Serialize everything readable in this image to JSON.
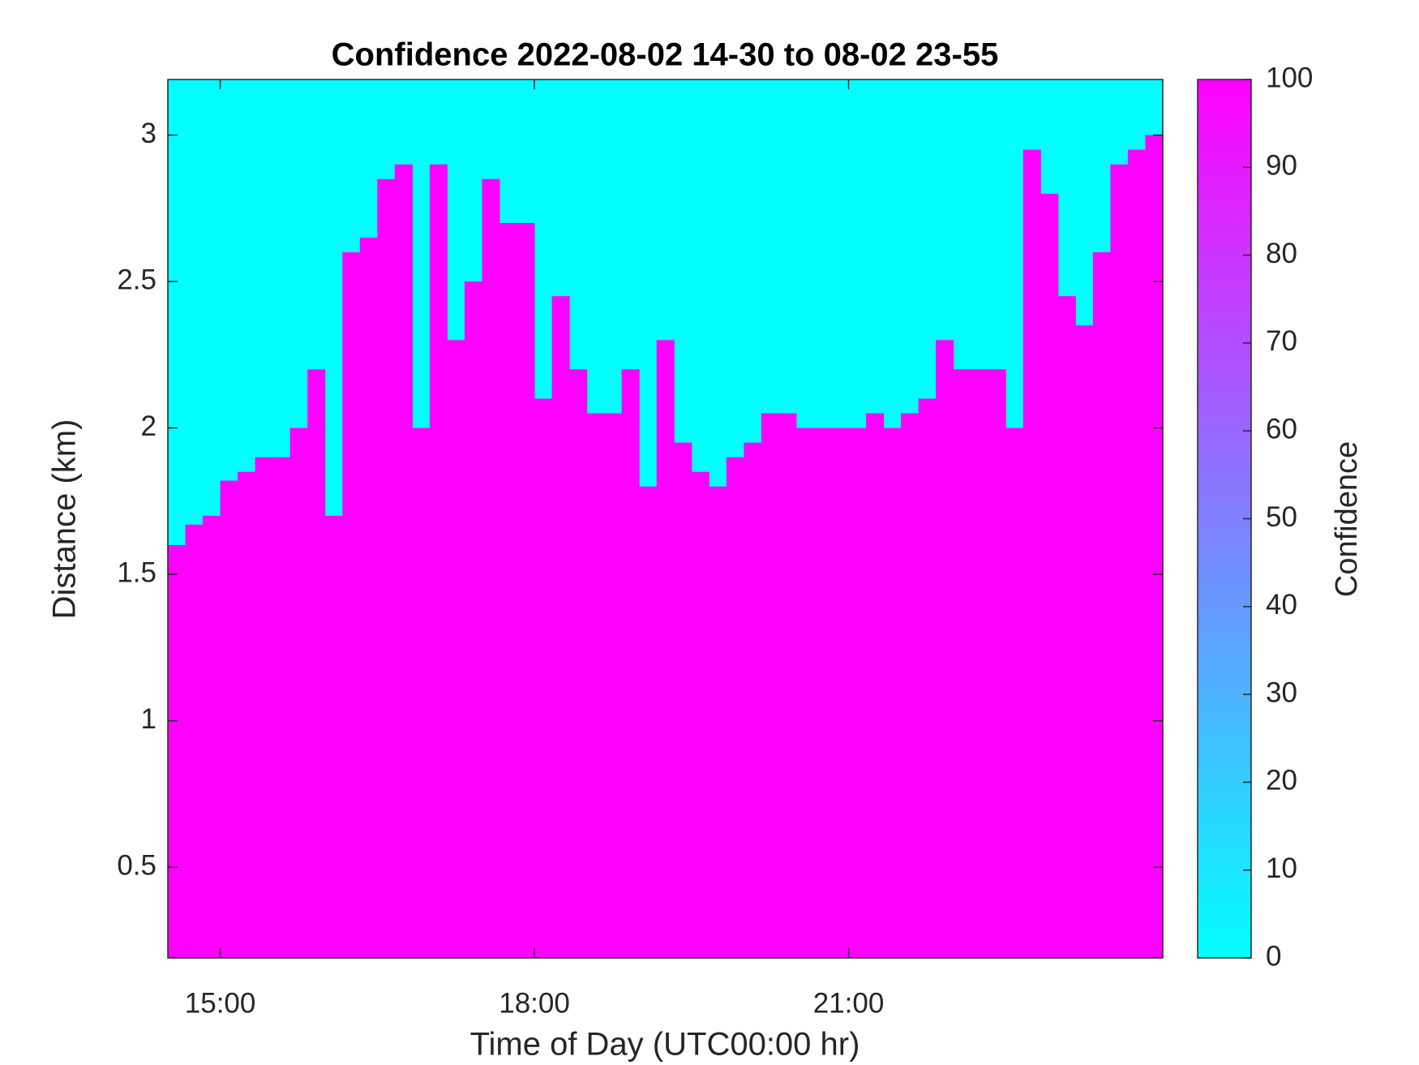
{
  "chart_data": {
    "type": "heatmap",
    "title": "Confidence 2022-08-02 14-30 to 08-02 23-55",
    "x_label": "Time of Day (UTC00:00 hr)",
    "y_label": "Distance (km)",
    "x": [
      870,
      880,
      890,
      900,
      910,
      920,
      930,
      940,
      950,
      960,
      970,
      980,
      990,
      1000,
      1010,
      1020,
      1030,
      1040,
      1050,
      1060,
      1070,
      1080,
      1090,
      1100,
      1110,
      1120,
      1130,
      1140,
      1150,
      1160,
      1170,
      1180,
      1190,
      1200,
      1210,
      1220,
      1230,
      1240,
      1250,
      1260,
      1270,
      1280,
      1290,
      1300,
      1310,
      1320,
      1330,
      1340,
      1350,
      1360,
      1370,
      1380,
      1390,
      1400,
      1410,
      1420,
      1430
    ],
    "series": [
      {
        "name": "Confidence",
        "color": "#ff00ff",
        "values": [
          1.6,
          1.67,
          1.7,
          1.82,
          1.85,
          1.9,
          1.9,
          2.0,
          2.2,
          1.7,
          2.6,
          2.65,
          2.85,
          2.9,
          2.0,
          2.9,
          2.3,
          2.5,
          2.85,
          2.7,
          2.7,
          2.1,
          2.45,
          2.2,
          2.05,
          2.05,
          2.2,
          1.8,
          2.3,
          1.95,
          1.85,
          1.8,
          1.9,
          1.95,
          2.05,
          2.05,
          2.0,
          2.0,
          2.0,
          2.0,
          2.05,
          2.0,
          2.05,
          2.1,
          2.3,
          2.2,
          2.2,
          2.2,
          2.0,
          2.95,
          2.8,
          2.45,
          2.35,
          2.6,
          2.9,
          2.95,
          3.0
        ]
      }
    ],
    "background_color": "#00ffff",
    "xlim": [
      870,
      1440
    ],
    "xticks": [
      {
        "value": 900,
        "label": "15:00"
      },
      {
        "value": 1080,
        "label": "18:00"
      },
      {
        "value": 1260,
        "label": "21:00"
      }
    ],
    "ylim": [
      0.19,
      3.19
    ],
    "yticks": [
      0.5,
      1,
      1.5,
      2,
      2.5,
      3
    ],
    "colorbar": {
      "label": "Confidence",
      "lim": [
        0,
        100
      ],
      "ticks": [
        0,
        10,
        20,
        30,
        40,
        50,
        60,
        70,
        80,
        90,
        100
      ],
      "colors": [
        "#00ffff",
        "#ff00ff"
      ]
    }
  }
}
